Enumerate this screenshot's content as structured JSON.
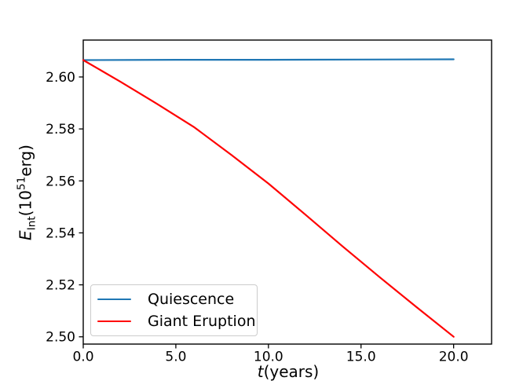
{
  "chart_data": {
    "type": "line",
    "title": "",
    "xlabel": "t(years)",
    "ylabel": "E_Int(10^51erg)",
    "xlabel_parts": {
      "var": "t",
      "rest": "(years)"
    },
    "ylabel_parts": {
      "var": "E",
      "sub": "Int",
      "mid": "(10",
      "sup": "51",
      "unit": "erg)"
    },
    "xlim": [
      0,
      22.05
    ],
    "ylim": [
      2.4972,
      2.6142
    ],
    "x_ticks": [
      0,
      5,
      10,
      15,
      20
    ],
    "x_tick_labels": [
      "0.0",
      "5.0",
      "10.0",
      "15.0",
      "20.0"
    ],
    "y_ticks": [
      2.5,
      2.52,
      2.54,
      2.56,
      2.58,
      2.6
    ],
    "y_tick_labels": [
      "2.50",
      "2.52",
      "2.54",
      "2.56",
      "2.58",
      "2.60"
    ],
    "grid": false,
    "frame": true,
    "axis_color": "#000000",
    "legend_position": "lower left",
    "series": [
      {
        "name": "Quiescence",
        "color": "#1f77b4",
        "x": [
          0,
          5,
          10,
          15,
          20
        ],
        "y": [
          2.6065,
          2.6066,
          2.6066,
          2.6067,
          2.6068
        ]
      },
      {
        "name": "Giant Eruption",
        "color": "#ff0000",
        "x": [
          0,
          2,
          4,
          6,
          8,
          10,
          12,
          14,
          16,
          18,
          20
        ],
        "y": [
          2.6065,
          2.5982,
          2.5896,
          2.5806,
          2.57,
          2.559,
          2.547,
          2.5348,
          2.523,
          2.5114,
          2.5
        ]
      }
    ]
  }
}
